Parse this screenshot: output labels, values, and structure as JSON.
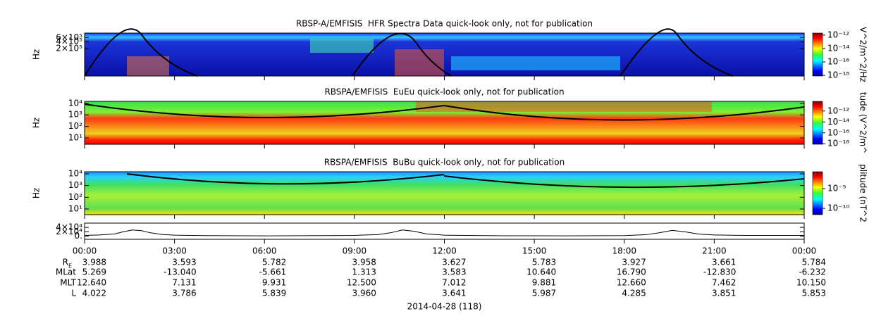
{
  "chart_data": [
    {
      "type": "spectrogram",
      "title": "RBSP-A/EMFISIS  HFR Spectra Data quick-look only, not for publication",
      "ylabel": "Hz",
      "log": true,
      "ylim": [
        13000,
        930000
      ],
      "yticks": [
        {
          "value": 200000,
          "label": "2×10⁵"
        },
        {
          "value": 400000,
          "label": "4×10⁵"
        },
        {
          "value": 600000,
          "label": "6×10⁵"
        }
      ],
      "colorbar": {
        "label": "V^2/m^2/Hz",
        "log": true,
        "clim": [
          8e-19,
          2e-12
        ],
        "ticks": [
          {
            "value": 1e-12,
            "label": "10⁻¹²"
          },
          {
            "value": 1e-14,
            "label": "10⁻¹⁴"
          },
          {
            "value": 1e-16,
            "label": "10⁻¹⁶"
          },
          {
            "value": 1e-18,
            "label": "10⁻¹⁸"
          }
        ]
      }
    },
    {
      "type": "spectrogram",
      "title": "RBSPA/EMFISIS  EuEu quick-look only, not for publication",
      "ylabel": "Hz",
      "log": true,
      "ylim": [
        2.8,
        15000
      ],
      "yticks": [
        {
          "value": 10,
          "label": "10¹"
        },
        {
          "value": 100,
          "label": "10²"
        },
        {
          "value": 1000,
          "label": "10³"
        },
        {
          "value": 10000,
          "label": "10⁴"
        }
      ],
      "colorbar": {
        "label": "tude (V^2/m^",
        "log": true,
        "clim": [
          8e-19,
          6e-11
        ],
        "ticks": [
          {
            "value": 1e-12,
            "label": "10⁻¹²"
          },
          {
            "value": 1e-14,
            "label": "10⁻¹⁴"
          },
          {
            "value": 1e-16,
            "label": "10⁻¹⁶"
          },
          {
            "value": 1e-18,
            "label": "10⁻¹⁸"
          }
        ]
      }
    },
    {
      "type": "spectrogram",
      "title": "RBSPA/EMFISIS  BuBu quick-look only, not for publication",
      "ylabel": "Hz",
      "log": true,
      "ylim": [
        3.3,
        15000
      ],
      "yticks": [
        {
          "value": 10,
          "label": "10¹"
        },
        {
          "value": 100,
          "label": "10²"
        },
        {
          "value": 1000,
          "label": "10³"
        },
        {
          "value": 10000,
          "label": "10⁴"
        }
      ],
      "colorbar": {
        "label": "plitude (nT^2",
        "log": true,
        "clim": [
          2.5e-12,
          0.2
        ],
        "ticks": [
          {
            "value": 1e-05,
            "label": "10⁻⁵"
          },
          {
            "value": 1e-10,
            "label": "10⁻¹⁰"
          }
        ]
      }
    },
    {
      "type": "line",
      "color": "#000000",
      "ylim": [
        -15000,
        60000
      ],
      "yticks": [
        {
          "value": 0,
          "label": "0."
        },
        {
          "value": 20000,
          "label": "2×10⁴"
        },
        {
          "value": 40000,
          "label": "4×10⁴"
        }
      ],
      "xlim": [
        0,
        24
      ],
      "xticks": [
        {
          "value": 0,
          "label": "00:00"
        },
        {
          "value": 3,
          "label": "03:00"
        },
        {
          "value": 6,
          "label": "06:00"
        },
        {
          "value": 9,
          "label": "09:00"
        },
        {
          "value": 12,
          "label": "12:00"
        },
        {
          "value": 15,
          "label": "15:00"
        },
        {
          "value": 18,
          "label": "18:00"
        },
        {
          "value": 21,
          "label": "21:00"
        },
        {
          "value": 24,
          "label": "00:00"
        }
      ],
      "x": [
        0,
        0.5,
        1,
        1.3,
        1.6,
        1.9,
        2.2,
        2.6,
        3,
        4,
        6,
        8,
        9,
        9.8,
        10.2,
        10.6,
        11.0,
        11.4,
        12,
        14,
        16,
        18,
        18.7,
        19.2,
        19.6,
        20.0,
        20.5,
        21,
        22,
        24
      ],
      "values": [
        3000,
        5000,
        10000,
        20000,
        28000,
        25000,
        15000,
        7000,
        4000,
        2000,
        1000,
        2000,
        3000,
        7000,
        15000,
        28000,
        22000,
        10000,
        4000,
        1500,
        1000,
        2000,
        6000,
        16000,
        26000,
        20000,
        9000,
        5000,
        3000,
        3000
      ]
    }
  ],
  "ephemeris": {
    "rows": [
      {
        "label": "R",
        "sub": "E",
        "values": [
          "3.988",
          "3.593",
          "5.782",
          "3.958",
          "3.627",
          "5.783",
          "3.927",
          "3.661",
          "5.784"
        ]
      },
      {
        "label": "MLat",
        "values": [
          "5.269",
          "-13.040",
          "-5.661",
          "1.313",
          "3.583",
          "10.640",
          "16.790",
          "-12.830",
          "-6.232"
        ]
      },
      {
        "label": "MLT",
        "values": [
          "12.640",
          "7.131",
          "9.931",
          "12.500",
          "7.012",
          "9.881",
          "12.660",
          "7.462",
          "10.150"
        ]
      },
      {
        "label": "L",
        "values": [
          "4.022",
          "3.786",
          "5.839",
          "3.960",
          "3.641",
          "5.987",
          "4.285",
          "3.851",
          "5.853"
        ]
      }
    ],
    "date": "2014-04-28 (118)"
  }
}
